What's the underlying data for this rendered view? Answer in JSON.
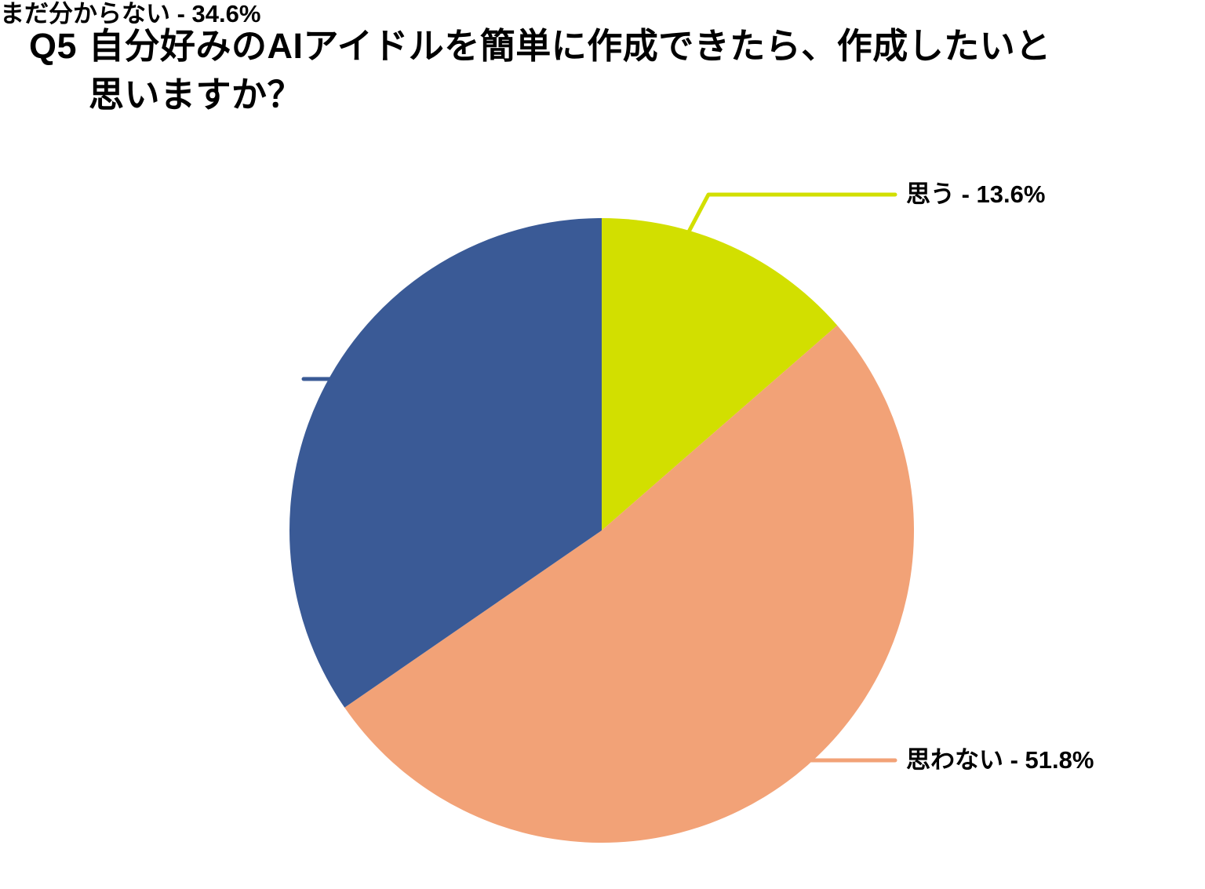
{
  "title": {
    "prefix": "Q5",
    "line1": "自分好みのAIアイドルを簡単に作成できたら、作成したいと",
    "line2": "思いますか？"
  },
  "chart_data": {
    "type": "pie",
    "title": "Q5 自分好みのAIアイドルを簡単に作成できたら、作成したいと思いますか？",
    "unit": "%",
    "start_angle_deg": 0,
    "direction": "clockwise",
    "legend": "none",
    "background": "#FFFFFF",
    "label_text_color": "#000000",
    "slices": [
      {
        "label": "思う",
        "value": 13.6,
        "color": "#D2DF00",
        "display": "思う - 13.6%"
      },
      {
        "label": "思わない",
        "value": 51.8,
        "color": "#F2A277",
        "display": "思わない - 51.8%"
      },
      {
        "label": "まだ分からない",
        "value": 34.6,
        "color": "#3A5A96",
        "display": "まだ分からない - 34.6%"
      }
    ]
  }
}
